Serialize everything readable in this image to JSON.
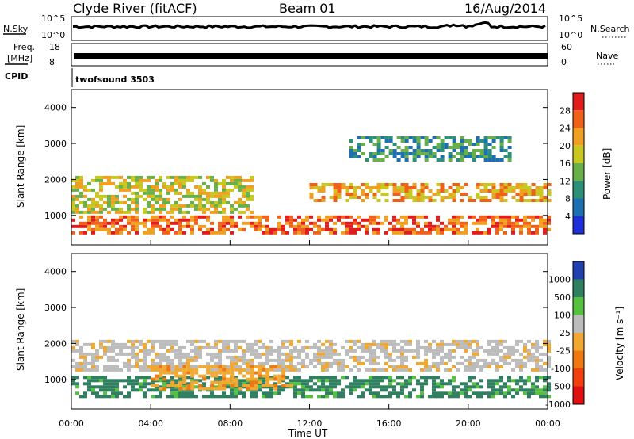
{
  "header": {
    "station": "Clyde River (fitACF)",
    "beam": "Beam 01",
    "date": "16/Aug/2014"
  },
  "top_panels": {
    "nsky_label": "N.Sky",
    "nsky_ticks": [
      "10^5",
      "10^0"
    ],
    "nsearch_label": "N.Search",
    "nsearch_ticks": [
      "10^5",
      "10^0"
    ],
    "freq_label_line1": "Freq.",
    "freq_label_line2": "[MHz]",
    "freq_ticks": [
      "18",
      "8"
    ],
    "nave_label": "Nave",
    "nave_ticks": [
      "60",
      "0"
    ],
    "cpid_label": "CPID",
    "cpid_value": "twofsound 3503"
  },
  "chart_data": [
    {
      "type": "heatmap",
      "name": "power",
      "xlabel": "Time UT",
      "ylabel": "Slant Range [km]",
      "xlim": [
        0,
        24
      ],
      "ylim": [
        180,
        4500
      ],
      "x_ticks": [
        "00:00",
        "04:00",
        "08:00",
        "12:00",
        "16:00",
        "20:00",
        "00:00"
      ],
      "y_ticks": [
        1000,
        2000,
        3000,
        4000
      ],
      "colorbar": {
        "label": "Power [dB]",
        "ticks": [
          "4",
          "8",
          "12",
          "16",
          "20",
          "24",
          "28"
        ],
        "colors": [
          "#1f2fd8",
          "#1e6fb0",
          "#2e8f78",
          "#6ab04a",
          "#c8c820",
          "#f0a020",
          "#f06018",
          "#e01c1c"
        ]
      },
      "bands": [
        {
          "t0": 0,
          "t1": 24,
          "r0": 500,
          "r1": 1000,
          "level": 6
        },
        {
          "t0": 0,
          "t1": 9,
          "r0": 1100,
          "r1": 2100,
          "level": 4
        },
        {
          "t0": 12,
          "t1": 24,
          "r0": 1400,
          "r1": 1900,
          "level": 5
        },
        {
          "t0": 14,
          "t1": 22,
          "r0": 2500,
          "r1": 3200,
          "level": 2
        }
      ]
    },
    {
      "type": "heatmap",
      "name": "velocity",
      "xlabel": "Time UT",
      "ylabel": "Slant Range [km]",
      "xlim": [
        0,
        24
      ],
      "ylim": [
        180,
        4500
      ],
      "x_ticks": [
        "00:00",
        "04:00",
        "08:00",
        "12:00",
        "16:00",
        "20:00",
        "00:00"
      ],
      "y_ticks": [
        1000,
        2000,
        3000,
        4000
      ],
      "colorbar": {
        "label": "Velocity [m s⁻¹]",
        "ticks": [
          "1000",
          "500",
          "100",
          "25",
          "-25",
          "-100",
          "-500",
          "-1000"
        ],
        "colors": [
          "#2040b0",
          "#2f7f60",
          "#56c040",
          "#bcbcbc",
          "#f0a830",
          "#f07810",
          "#f04010",
          "#e01010"
        ]
      },
      "bands": [
        {
          "t0": 0,
          "t1": 24,
          "r0": 500,
          "r1": 1100,
          "level": 1
        },
        {
          "t0": 0,
          "t1": 24,
          "r0": 1300,
          "r1": 2100,
          "level": 3
        },
        {
          "t0": 4,
          "t1": 11,
          "r0": 700,
          "r1": 1400,
          "level": 4
        }
      ]
    }
  ]
}
